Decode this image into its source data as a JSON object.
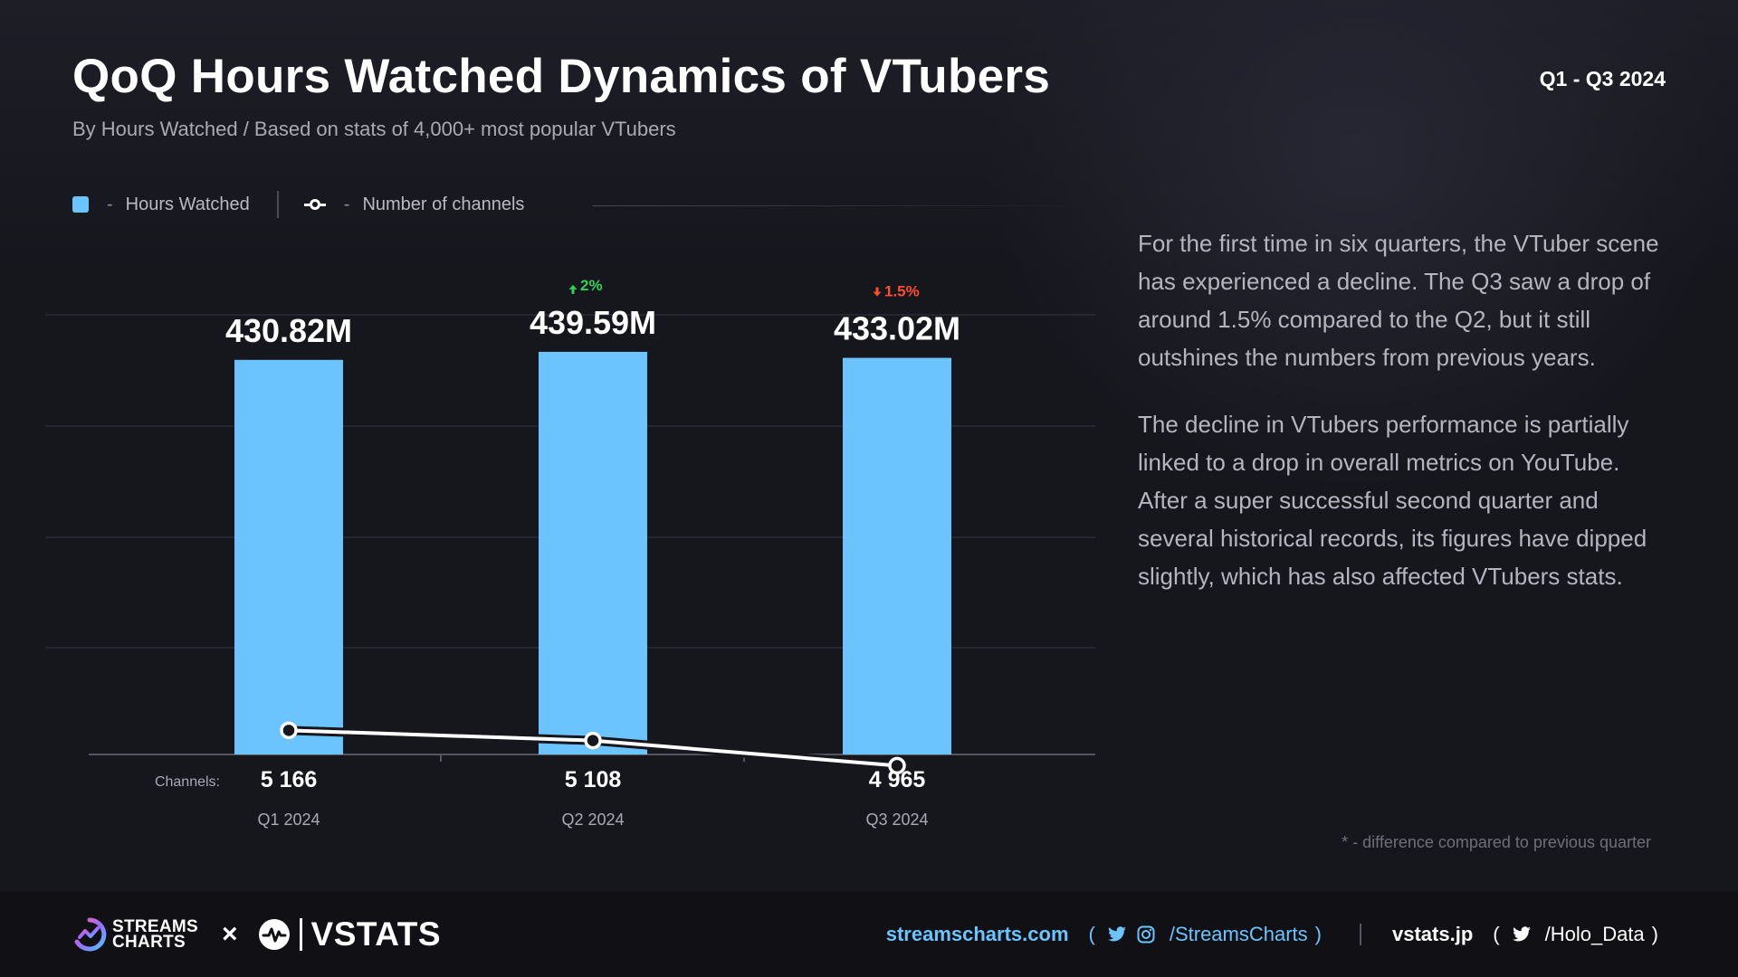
{
  "header": {
    "title": "QoQ Hours Watched Dynamics of VTubers",
    "subtitle": "By Hours Watched / Based on stats of 4,000+ most popular VTubers",
    "period": "Q1 - Q3 2024"
  },
  "legend": {
    "bars_label": "Hours Watched",
    "line_label": "Number of channels",
    "dash": "-"
  },
  "colors": {
    "bar": "#6cc4ff",
    "line": "#ffffff",
    "increase": "#31d158",
    "decrease": "#ff4d2e"
  },
  "chart_data": {
    "type": "bar",
    "categories": [
      "Q1 2024",
      "Q2 2024",
      "Q3 2024"
    ],
    "series": [
      {
        "name": "Hours Watched",
        "type": "bar",
        "values": [
          430.82,
          439.59,
          433.02
        ],
        "labels": [
          "430.82M",
          "439.59M",
          "433.02M"
        ]
      },
      {
        "name": "Number of channels",
        "type": "line",
        "values": [
          5166,
          5108,
          4965
        ],
        "labels": [
          "5 166",
          "5 108",
          "4 965"
        ]
      }
    ],
    "changes": [
      {
        "category": "Q2 2024",
        "direction": "up",
        "label": "2%",
        "icon": "arrow-up-icon"
      },
      {
        "category": "Q3 2024",
        "direction": "down",
        "label": "1.5%",
        "icon": "arrow-down-icon"
      }
    ],
    "channels_prefix": "Channels:",
    "ylim": [
      0,
      480
    ],
    "grid": true,
    "legend_position": "top-left"
  },
  "commentary": {
    "p1": "For the first time in six quarters, the VTuber scene has experienced a decline. The Q3 saw a drop of around 1.5% compared to the Q2, but it still outshines the numbers from previous years.",
    "p2": "The decline in VTubers performance is partially linked to a drop in overall metrics on YouTube. After a super successful second quarter and several historical records, its figures have dipped slightly, which has also affected VTubers stats."
  },
  "footnote": "* - difference compared to previous quarter",
  "footer": {
    "brand_line1": "STREAMS",
    "brand_line2": "CHARTS",
    "times": "×",
    "vstats": "VSTATS",
    "site": "streamscharts.com",
    "paren_open": "(",
    "paren_close": ")",
    "handle": "/StreamsCharts",
    "vsite": "vstats.jp",
    "vhandle": "/Holo_Data"
  }
}
